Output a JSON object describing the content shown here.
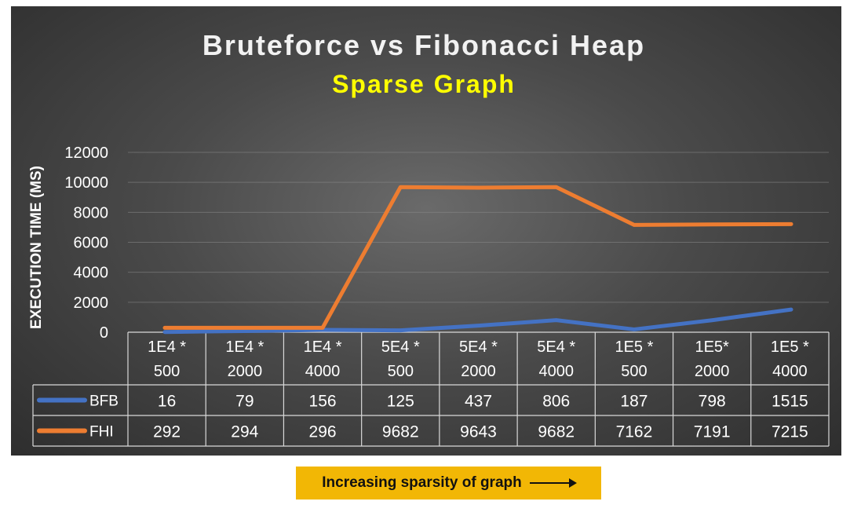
{
  "chart_data": {
    "type": "line",
    "title": "Bruteforce vs Fibonacci Heap",
    "subtitle": "Sparse Graph",
    "ylabel": "EXECUTION TIME (MS)",
    "xlabel": "",
    "ylim": [
      0,
      12000
    ],
    "yticks": [
      0,
      2000,
      4000,
      6000,
      8000,
      10000,
      12000
    ],
    "categories": [
      [
        "1E4 *",
        "500"
      ],
      [
        "1E4 *",
        "2000"
      ],
      [
        "1E4 *",
        "4000"
      ],
      [
        "5E4 *",
        "500"
      ],
      [
        "5E4 *",
        "2000"
      ],
      [
        "5E4 *",
        "4000"
      ],
      [
        "1E5 *",
        "500"
      ],
      [
        "1E5*",
        "2000"
      ],
      [
        "1E5 *",
        "4000"
      ]
    ],
    "series": [
      {
        "name": "BFB",
        "color": "#4472c4",
        "values": [
          16,
          79,
          156,
          125,
          437,
          806,
          187,
          798,
          1515
        ]
      },
      {
        "name": "FHI",
        "color": "#ed7d31",
        "values": [
          292,
          294,
          296,
          9682,
          9643,
          9682,
          7162,
          7191,
          7215
        ]
      }
    ],
    "grid": true,
    "legend": "data-table",
    "title_color": "#f2f2f2",
    "subtitle_color": "#ffff00"
  },
  "caption": {
    "text": "Increasing sparsity of graph"
  }
}
